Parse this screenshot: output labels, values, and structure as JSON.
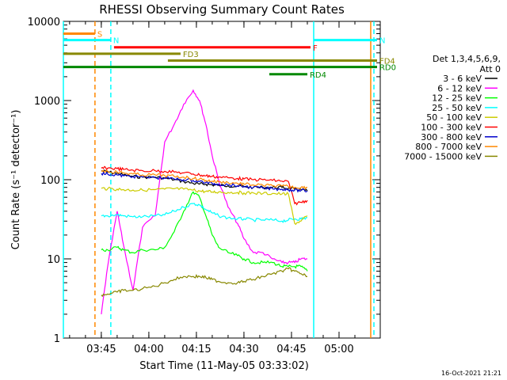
{
  "chart_data": {
    "type": "line",
    "title": "RHESSI Observing Summary Count Rates",
    "xlabel": "Start Time (11-May-05 03:33:02)",
    "ylabel": "Count Rate (s⁻¹ detector⁻¹)",
    "y_scale": "log",
    "ylim": [
      1,
      10000
    ],
    "xlim": [
      "03:33:02",
      "05:13:00"
    ],
    "x_ticks": [
      "03:45",
      "04:00",
      "04:15",
      "04:30",
      "04:45",
      "05:00"
    ],
    "y_ticks": [
      "1",
      "10",
      "100",
      "1000",
      "10000"
    ],
    "grid": false,
    "legend_position": "right",
    "legend_title": [
      "Det 1,3,4,5,6,9,",
      "Att 0"
    ],
    "footer_stamp": "16-Oct-2021 21:21",
    "series": [
      {
        "name": "3 - 6 keV",
        "color": "#000000",
        "x": [
          "03:45",
          "03:47",
          "03:50",
          "03:52",
          "03:55",
          "03:58",
          "04:02",
          "04:05",
          "04:08",
          "04:11",
          "04:14",
          "04:16",
          "04:18",
          "04:20",
          "04:22",
          "04:25",
          "04:28",
          "04:30",
          "04:33",
          "04:36",
          "04:39",
          "04:42",
          "04:44",
          "04:46",
          "04:48",
          "04:50"
        ],
        "y": [
          130,
          125,
          120,
          115,
          110,
          108,
          108,
          105,
          100,
          95,
          90,
          88,
          88,
          86,
          85,
          84,
          83,
          82,
          80,
          80,
          80,
          80,
          78,
          76,
          75,
          72
        ]
      },
      {
        "name": "6 - 12 keV",
        "color": "#ff00ff",
        "x": [
          "03:45",
          "03:47",
          "03:50",
          "03:52",
          "03:55",
          "03:58",
          "04:02",
          "04:05",
          "04:08",
          "04:11",
          "04:14",
          "04:16",
          "04:18",
          "04:20",
          "04:22",
          "04:25",
          "04:28",
          "04:30",
          "04:33",
          "04:36",
          "04:39",
          "04:42",
          "04:44",
          "04:46",
          "04:48",
          "04:50"
        ],
        "y": [
          2,
          8,
          40,
          15,
          4,
          25,
          35,
          300,
          500,
          900,
          1350,
          1000,
          500,
          200,
          100,
          45,
          28,
          18,
          12,
          12,
          10,
          9,
          9,
          9,
          10,
          10
        ]
      },
      {
        "name": "12 - 25 keV",
        "color": "#00ff00",
        "x": [
          "03:45",
          "03:47",
          "03:50",
          "03:52",
          "03:55",
          "03:58",
          "04:02",
          "04:05",
          "04:08",
          "04:11",
          "04:14",
          "04:16",
          "04:18",
          "04:20",
          "04:22",
          "04:25",
          "04:28",
          "04:30",
          "04:33",
          "04:36",
          "04:39",
          "04:42",
          "04:44",
          "04:46",
          "04:48",
          "04:50"
        ],
        "y": [
          13,
          13,
          14,
          13,
          12,
          13,
          13,
          14,
          22,
          40,
          70,
          60,
          35,
          20,
          14,
          12,
          11,
          10,
          9,
          9,
          9,
          8,
          8,
          8,
          8,
          7
        ]
      },
      {
        "name": "25 - 50 keV",
        "color": "#00ffff",
        "x": [
          "03:45",
          "03:47",
          "03:50",
          "03:52",
          "03:55",
          "03:58",
          "04:02",
          "04:05",
          "04:08",
          "04:11",
          "04:14",
          "04:16",
          "04:18",
          "04:20",
          "04:22",
          "04:25",
          "04:28",
          "04:30",
          "04:33",
          "04:36",
          "04:39",
          "04:42",
          "04:44",
          "04:46",
          "04:48",
          "04:50"
        ],
        "y": [
          35,
          35,
          36,
          35,
          34,
          34,
          35,
          36,
          40,
          45,
          50,
          48,
          42,
          38,
          35,
          33,
          32,
          32,
          31,
          31,
          31,
          30,
          31,
          32,
          32,
          33
        ]
      },
      {
        "name": "50 - 100 keV",
        "color": "#cccc00",
        "x": [
          "03:45",
          "03:47",
          "03:50",
          "03:52",
          "03:55",
          "03:58",
          "04:02",
          "04:05",
          "04:08",
          "04:11",
          "04:14",
          "04:16",
          "04:18",
          "04:20",
          "04:22",
          "04:25",
          "04:28",
          "04:30",
          "04:33",
          "04:36",
          "04:39",
          "04:42",
          "04:44",
          "04:46",
          "04:48",
          "04:50"
        ],
        "y": [
          78,
          77,
          76,
          75,
          74,
          74,
          75,
          76,
          77,
          76,
          74,
          72,
          71,
          70,
          70,
          69,
          69,
          68,
          68,
          67,
          67,
          66,
          66,
          28,
          30,
          35
        ]
      },
      {
        "name": "100 - 300 keV",
        "color": "#ff0000",
        "x": [
          "03:45",
          "03:47",
          "03:50",
          "03:52",
          "03:55",
          "03:58",
          "04:02",
          "04:05",
          "04:08",
          "04:11",
          "04:14",
          "04:16",
          "04:18",
          "04:20",
          "04:22",
          "04:25",
          "04:28",
          "04:30",
          "04:33",
          "04:36",
          "04:39",
          "04:42",
          "04:44",
          "04:46",
          "04:48",
          "04:50"
        ],
        "y": [
          140,
          140,
          138,
          135,
          132,
          130,
          130,
          128,
          125,
          122,
          118,
          115,
          112,
          110,
          108,
          106,
          104,
          102,
          100,
          100,
          98,
          96,
          95,
          50,
          52,
          55
        ]
      },
      {
        "name": "300 - 800 keV",
        "color": "#0000cc",
        "x": [
          "03:45",
          "03:47",
          "03:50",
          "03:52",
          "03:55",
          "03:58",
          "04:02",
          "04:05",
          "04:08",
          "04:11",
          "04:14",
          "04:16",
          "04:18",
          "04:20",
          "04:22",
          "04:25",
          "04:28",
          "04:30",
          "04:33",
          "04:36",
          "04:39",
          "04:42",
          "04:44",
          "04:46",
          "04:48",
          "04:50"
        ],
        "y": [
          120,
          118,
          115,
          112,
          110,
          108,
          106,
          105,
          102,
          100,
          98,
          95,
          92,
          90,
          88,
          86,
          84,
          82,
          80,
          78,
          77,
          76,
          75,
          74,
          73,
          72
        ]
      },
      {
        "name": "800 - 7000 keV",
        "color": "#ff8800",
        "x": [
          "03:45",
          "03:47",
          "03:50",
          "03:52",
          "03:55",
          "03:58",
          "04:02",
          "04:05",
          "04:08",
          "04:11",
          "04:14",
          "04:16",
          "04:18",
          "04:20",
          "04:22",
          "04:25",
          "04:28",
          "04:30",
          "04:33",
          "04:36",
          "04:39",
          "04:42",
          "04:44",
          "04:46",
          "04:48",
          "04:50"
        ],
        "y": [
          130,
          128,
          125,
          122,
          118,
          115,
          115,
          113,
          110,
          108,
          104,
          102,
          98,
          96,
          94,
          92,
          90,
          88,
          86,
          85,
          84,
          83,
          82,
          80,
          80,
          80
        ]
      },
      {
        "name": "7000 - 15000 keV",
        "color": "#888800",
        "x": [
          "03:45",
          "03:47",
          "03:50",
          "03:52",
          "03:55",
          "03:58",
          "04:02",
          "04:05",
          "04:08",
          "04:11",
          "04:14",
          "04:16",
          "04:18",
          "04:20",
          "04:22",
          "04:25",
          "04:28",
          "04:30",
          "04:33",
          "04:36",
          "04:39",
          "04:42",
          "04:44",
          "04:46",
          "04:48",
          "04:50"
        ],
        "y": [
          3.5,
          3.6,
          3.8,
          4,
          4,
          4.2,
          4.5,
          5,
          5.5,
          6,
          6,
          6,
          5.8,
          5.5,
          5.2,
          5,
          5,
          5.2,
          5.5,
          6,
          6.5,
          7,
          7.5,
          7,
          6.5,
          6
        ]
      }
    ],
    "flag_bars": [
      {
        "label": "S",
        "color": "#ff8800",
        "x0": "03:33:02",
        "x1": "03:43",
        "y": 7000
      },
      {
        "label": "N",
        "color": "#00ffff",
        "x0": "03:33:02",
        "x1": "03:48",
        "y": 5800
      },
      {
        "label": "N",
        "color": "#00ffff",
        "x0": "04:52",
        "x1": "05:12",
        "y": 5800
      },
      {
        "label": "F",
        "color": "#ff0000",
        "x0": "03:49",
        "x1": "04:51",
        "y": 4700
      },
      {
        "label": "FD3",
        "color": "#888800",
        "x0": "03:33:02",
        "x1": "04:10",
        "y": 3900
      },
      {
        "label": "FD4",
        "color": "#888800",
        "x0": "04:06",
        "x1": "05:12",
        "y": 3200
      },
      {
        "label": "RD0",
        "color": "#008800",
        "x0": "03:33:02",
        "x1": "05:12",
        "y": 2650
      },
      {
        "label": "RD4",
        "color": "#008800",
        "x0": "04:38",
        "x1": "04:50",
        "y": 2150
      }
    ],
    "vertical_markers": [
      {
        "color": "#00ffff",
        "x": "03:33:02",
        "dashed": false
      },
      {
        "color": "#ff8800",
        "x": "03:43",
        "dashed": true
      },
      {
        "color": "#00ffff",
        "x": "03:48",
        "dashed": true
      },
      {
        "color": "#00ffff",
        "x": "04:52",
        "dashed": false
      },
      {
        "color": "#ff8800",
        "x": "05:10",
        "dashed": false
      },
      {
        "color": "#00ffff",
        "x": "05:11",
        "dashed": true
      }
    ]
  }
}
